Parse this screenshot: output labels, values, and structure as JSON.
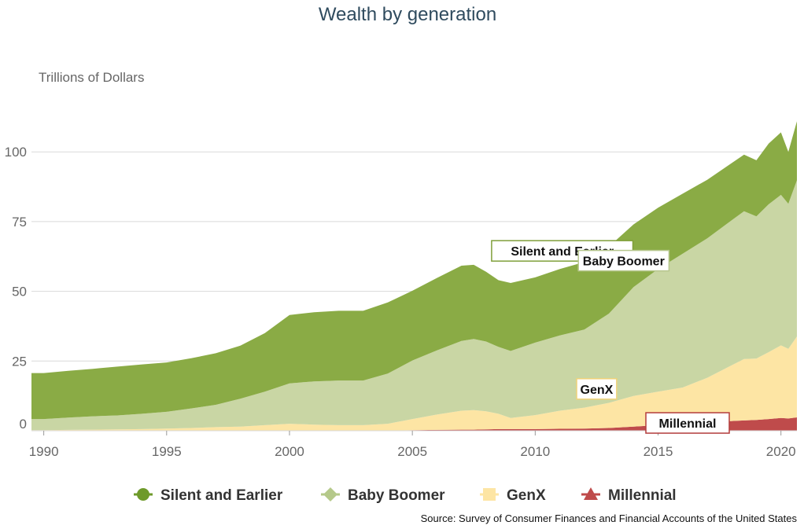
{
  "chart_data": {
    "type": "area",
    "stacked": true,
    "title": "Wealth by generation",
    "ylabel": "Trillions of Dollars",
    "xlabel": "",
    "ylim": [
      0,
      115
    ],
    "xlim": [
      1989.5,
      2020.65
    ],
    "y_ticks": [
      0,
      25,
      50,
      75,
      100
    ],
    "y_tick_labels": [
      "0",
      "25",
      "50",
      "75",
      "100"
    ],
    "x_ticks": [
      1990,
      1995,
      2000,
      2005,
      2010,
      2015,
      2020
    ],
    "x_tick_labels": [
      "1990",
      "1995",
      "2000",
      "2005",
      "2010",
      "2015",
      "2020"
    ],
    "grid": "horizontal",
    "legend_position": "bottom",
    "source": "Source: Survey of Consumer Finances and Financial Accounts of the United States",
    "x": [
      1989.5,
      1990,
      1991,
      1992,
      1993,
      1994,
      1995,
      1996,
      1997,
      1998,
      1999,
      2000,
      2001,
      2002,
      2003,
      2004,
      2005,
      2006,
      2007,
      2007.5,
      2008,
      2008.5,
      2009,
      2010,
      2011,
      2012,
      2013,
      2014,
      2015,
      2016,
      2017,
      2018,
      2018.5,
      2019,
      2019.5,
      2020,
      2020.3,
      2020.65
    ],
    "series": [
      {
        "name": "Millennial",
        "color": "#bf4b4b",
        "marker": "triangle",
        "values": [
          0,
          0,
          0,
          0,
          0,
          0,
          0,
          0,
          0,
          0,
          0,
          0,
          0,
          0,
          0,
          0,
          0.2,
          0.3,
          0.4,
          0.4,
          0.5,
          0.6,
          0.6,
          0.6,
          0.7,
          0.8,
          1.0,
          1.5,
          2.0,
          2.5,
          3.0,
          3.5,
          3.7,
          3.9,
          4.2,
          4.6,
          4.4,
          4.8
        ]
      },
      {
        "name": "GenX",
        "color": "#fde5a4",
        "marker": "square",
        "values": [
          0.2,
          0.2,
          0.3,
          0.4,
          0.5,
          0.6,
          0.8,
          1.0,
          1.3,
          1.5,
          2.0,
          2.5,
          2.2,
          2.0,
          2.0,
          2.5,
          4.0,
          5.5,
          6.8,
          7.0,
          6.5,
          5.5,
          4.0,
          5.0,
          6.5,
          7.5,
          9.0,
          11.0,
          12.0,
          13.0,
          16.0,
          20.0,
          22.0,
          22.0,
          24.0,
          26.0,
          25.0,
          29.0
        ]
      },
      {
        "name": "Baby Boomer",
        "color": "#c9d6a4",
        "marker": "diamond",
        "values": [
          4.0,
          4.0,
          4.4,
          4.8,
          5.0,
          5.5,
          6.0,
          7.0,
          8.0,
          10.0,
          12.0,
          14.5,
          15.5,
          16.0,
          16.0,
          18.0,
          21.0,
          23.0,
          25.0,
          25.5,
          25.0,
          24.0,
          24.0,
          26.0,
          27.0,
          28.0,
          32.0,
          39.0,
          44.0,
          48.0,
          50.0,
          52.0,
          53.0,
          51.0,
          53.0,
          54.0,
          52.0,
          56.0
        ]
      },
      {
        "name": "Silent and Earlier",
        "color": "#8aab45",
        "marker": "circle",
        "values": [
          16.5,
          16.5,
          16.8,
          17.0,
          17.5,
          17.7,
          17.7,
          18.0,
          18.5,
          19.0,
          21.0,
          24.5,
          24.8,
          25.0,
          25.0,
          25.5,
          25.0,
          26.0,
          27.0,
          26.6,
          25.0,
          23.9,
          24.4,
          23.4,
          23.8,
          24.2,
          24.0,
          22.5,
          22.0,
          21.5,
          21.0,
          20.5,
          20.3,
          20.1,
          21.8,
          22.4,
          18.6,
          21.2
        ]
      }
    ],
    "annotations": [
      {
        "text": "Silent and Earlier",
        "x": 2011.1,
        "y": 64.5,
        "series": "Silent and Earlier"
      },
      {
        "text": "Baby Boomer",
        "x": 2013.6,
        "y": 61,
        "series": "Baby Boomer"
      },
      {
        "text": "GenX",
        "x": 2012.5,
        "y": 15,
        "series": "GenX"
      },
      {
        "text": "Millennial",
        "x": 2016.2,
        "y": 2.8,
        "series": "Millennial"
      }
    ],
    "legend": [
      {
        "name": "Silent and Earlier",
        "color": "#6e9a2a",
        "marker": "circle"
      },
      {
        "name": "Baby Boomer",
        "color": "#b5c98a",
        "marker": "diamond"
      },
      {
        "name": "GenX",
        "color": "#fde5a4",
        "marker": "square"
      },
      {
        "name": "Millennial",
        "color": "#bf4b4b",
        "marker": "triangle"
      }
    ],
    "annotation_border_colors": {
      "Silent and Earlier": "#7f9f3a",
      "Baby Boomer": "#b7c78e",
      "GenX": "#f0d27a",
      "Millennial": "#b33c3c"
    }
  }
}
